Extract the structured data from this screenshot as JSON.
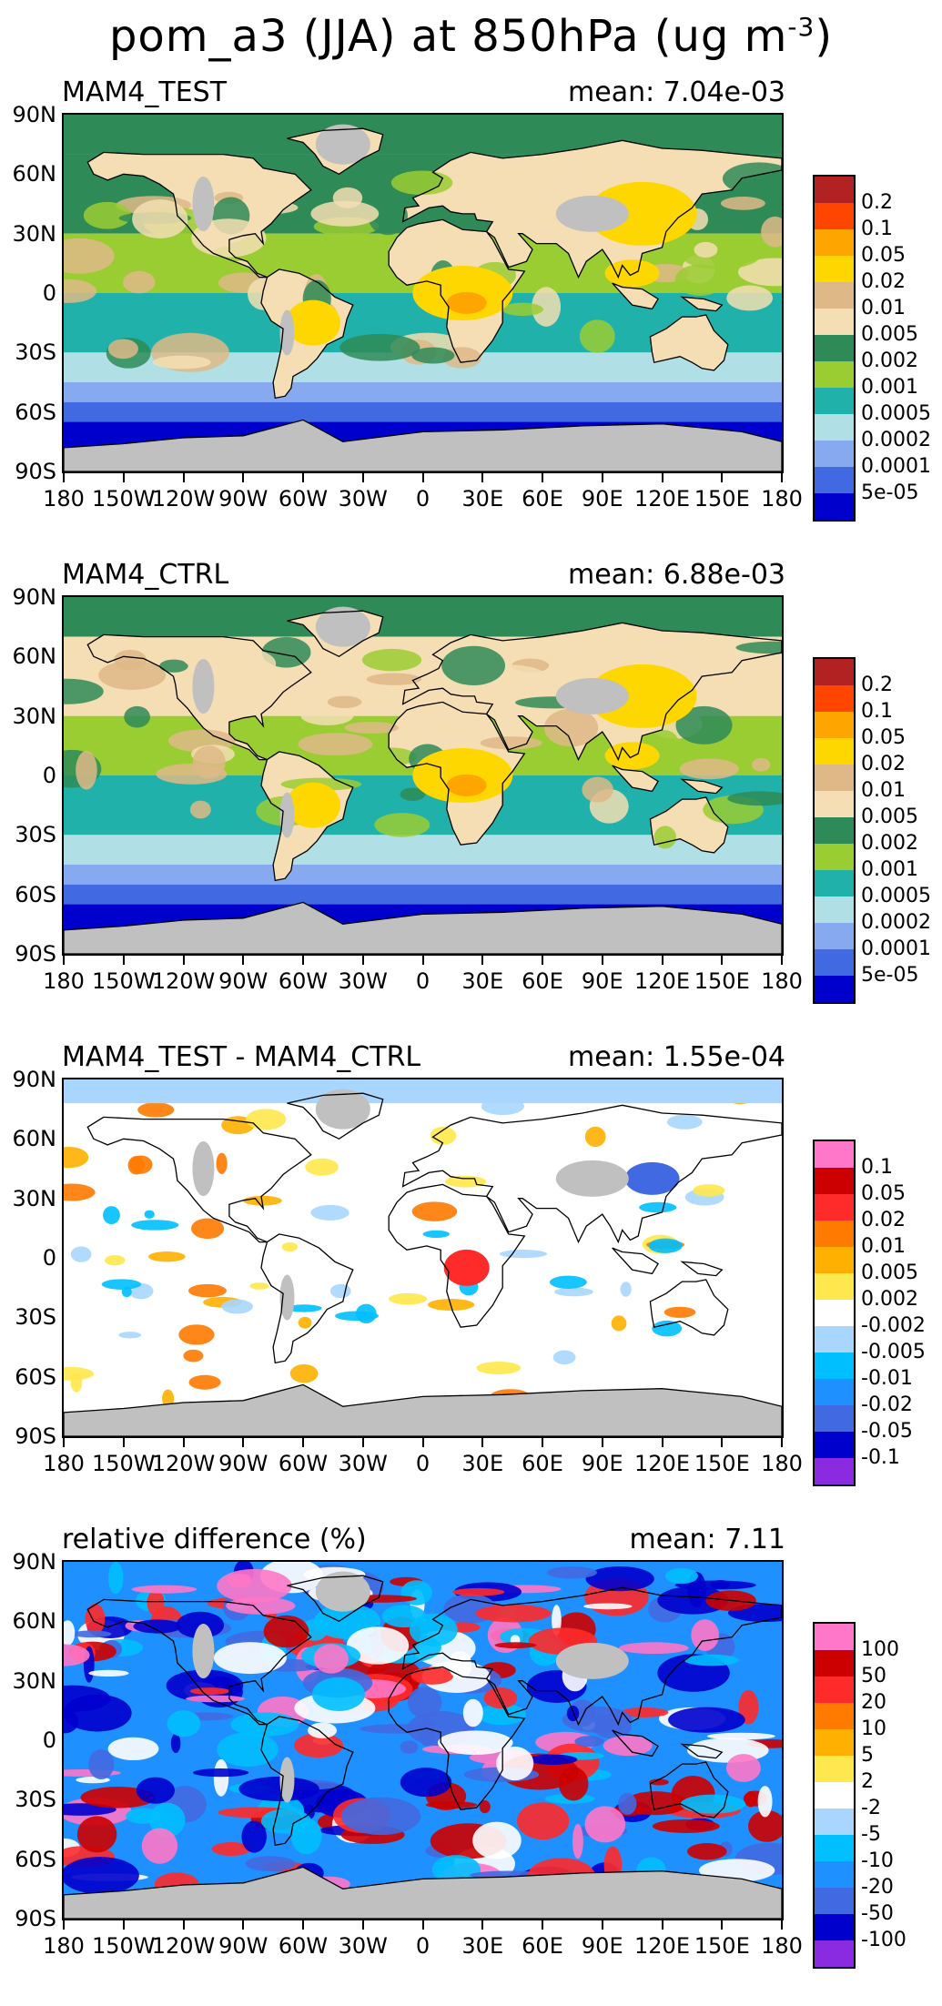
{
  "title": "pom_a3 (JJA) at 850hPa (ug m",
  "title_exponent": "-3",
  "title_suffix": ")",
  "lat_ticks": [
    "90N",
    "60N",
    "30N",
    "0",
    "30S",
    "60S",
    "90S"
  ],
  "lon_ticks": [
    "180",
    "150W",
    "120W",
    "90W",
    "60W",
    "30W",
    "0",
    "30E",
    "60E",
    "90E",
    "120E",
    "150E",
    "180"
  ],
  "panels": [
    {
      "label": "MAM4_TEST",
      "mean": "mean: 7.04e-03",
      "colorbar_colors": [
        "#b22222",
        "#ff4500",
        "#ffa500",
        "#ffd700",
        "#deb887",
        "#f5deb3",
        "#2e8b57",
        "#9acd32",
        "#20b2aa",
        "#b0e0e6",
        "#87a9f0",
        "#4169e1",
        "#0000cd"
      ],
      "colorbar_labels": [
        "0.2",
        "0.1",
        "0.05",
        "0.02",
        "0.01",
        "0.005",
        "0.002",
        "0.001",
        "0.0005",
        "0.0002",
        "0.0001",
        "5e-05"
      ],
      "map_style": "abs_test"
    },
    {
      "label": "MAM4_CTRL",
      "mean": "mean: 6.88e-03",
      "colorbar_colors": [
        "#b22222",
        "#ff4500",
        "#ffa500",
        "#ffd700",
        "#deb887",
        "#f5deb3",
        "#2e8b57",
        "#9acd32",
        "#20b2aa",
        "#b0e0e6",
        "#87a9f0",
        "#4169e1",
        "#0000cd"
      ],
      "colorbar_labels": [
        "0.2",
        "0.1",
        "0.05",
        "0.02",
        "0.01",
        "0.005",
        "0.002",
        "0.001",
        "0.0005",
        "0.0002",
        "0.0001",
        "5e-05"
      ],
      "map_style": "abs_ctrl"
    },
    {
      "label": "MAM4_TEST - MAM4_CTRL",
      "mean": "mean: 1.55e-04",
      "colorbar_colors": [
        "#ff77c8",
        "#cc0000",
        "#ff2a2a",
        "#ff7a00",
        "#ffb000",
        "#ffe84d",
        "#ffffff",
        "#a9d6ff",
        "#00bfff",
        "#1e90ff",
        "#4169e1",
        "#0000cd",
        "#8a2be2"
      ],
      "colorbar_labels": [
        "0.1",
        "0.05",
        "0.02",
        "0.01",
        "0.005",
        "0.002",
        "-0.002",
        "-0.005",
        "-0.01",
        "-0.02",
        "-0.05",
        "-0.1"
      ],
      "map_style": "diff"
    },
    {
      "label": "relative difference (%)",
      "mean": "mean:  7.11",
      "colorbar_colors": [
        "#ff77c8",
        "#cc0000",
        "#ff2a2a",
        "#ff7a00",
        "#ffb000",
        "#ffe84d",
        "#ffffff",
        "#a9d6ff",
        "#00bfff",
        "#1e90ff",
        "#4169e1",
        "#0000cd",
        "#8a2be2"
      ],
      "colorbar_labels": [
        "100",
        "50",
        "20",
        "10",
        "5",
        "2",
        "-2",
        "-5",
        "-10",
        "-20",
        "-50",
        "-100"
      ],
      "map_style": "rel"
    }
  ]
}
